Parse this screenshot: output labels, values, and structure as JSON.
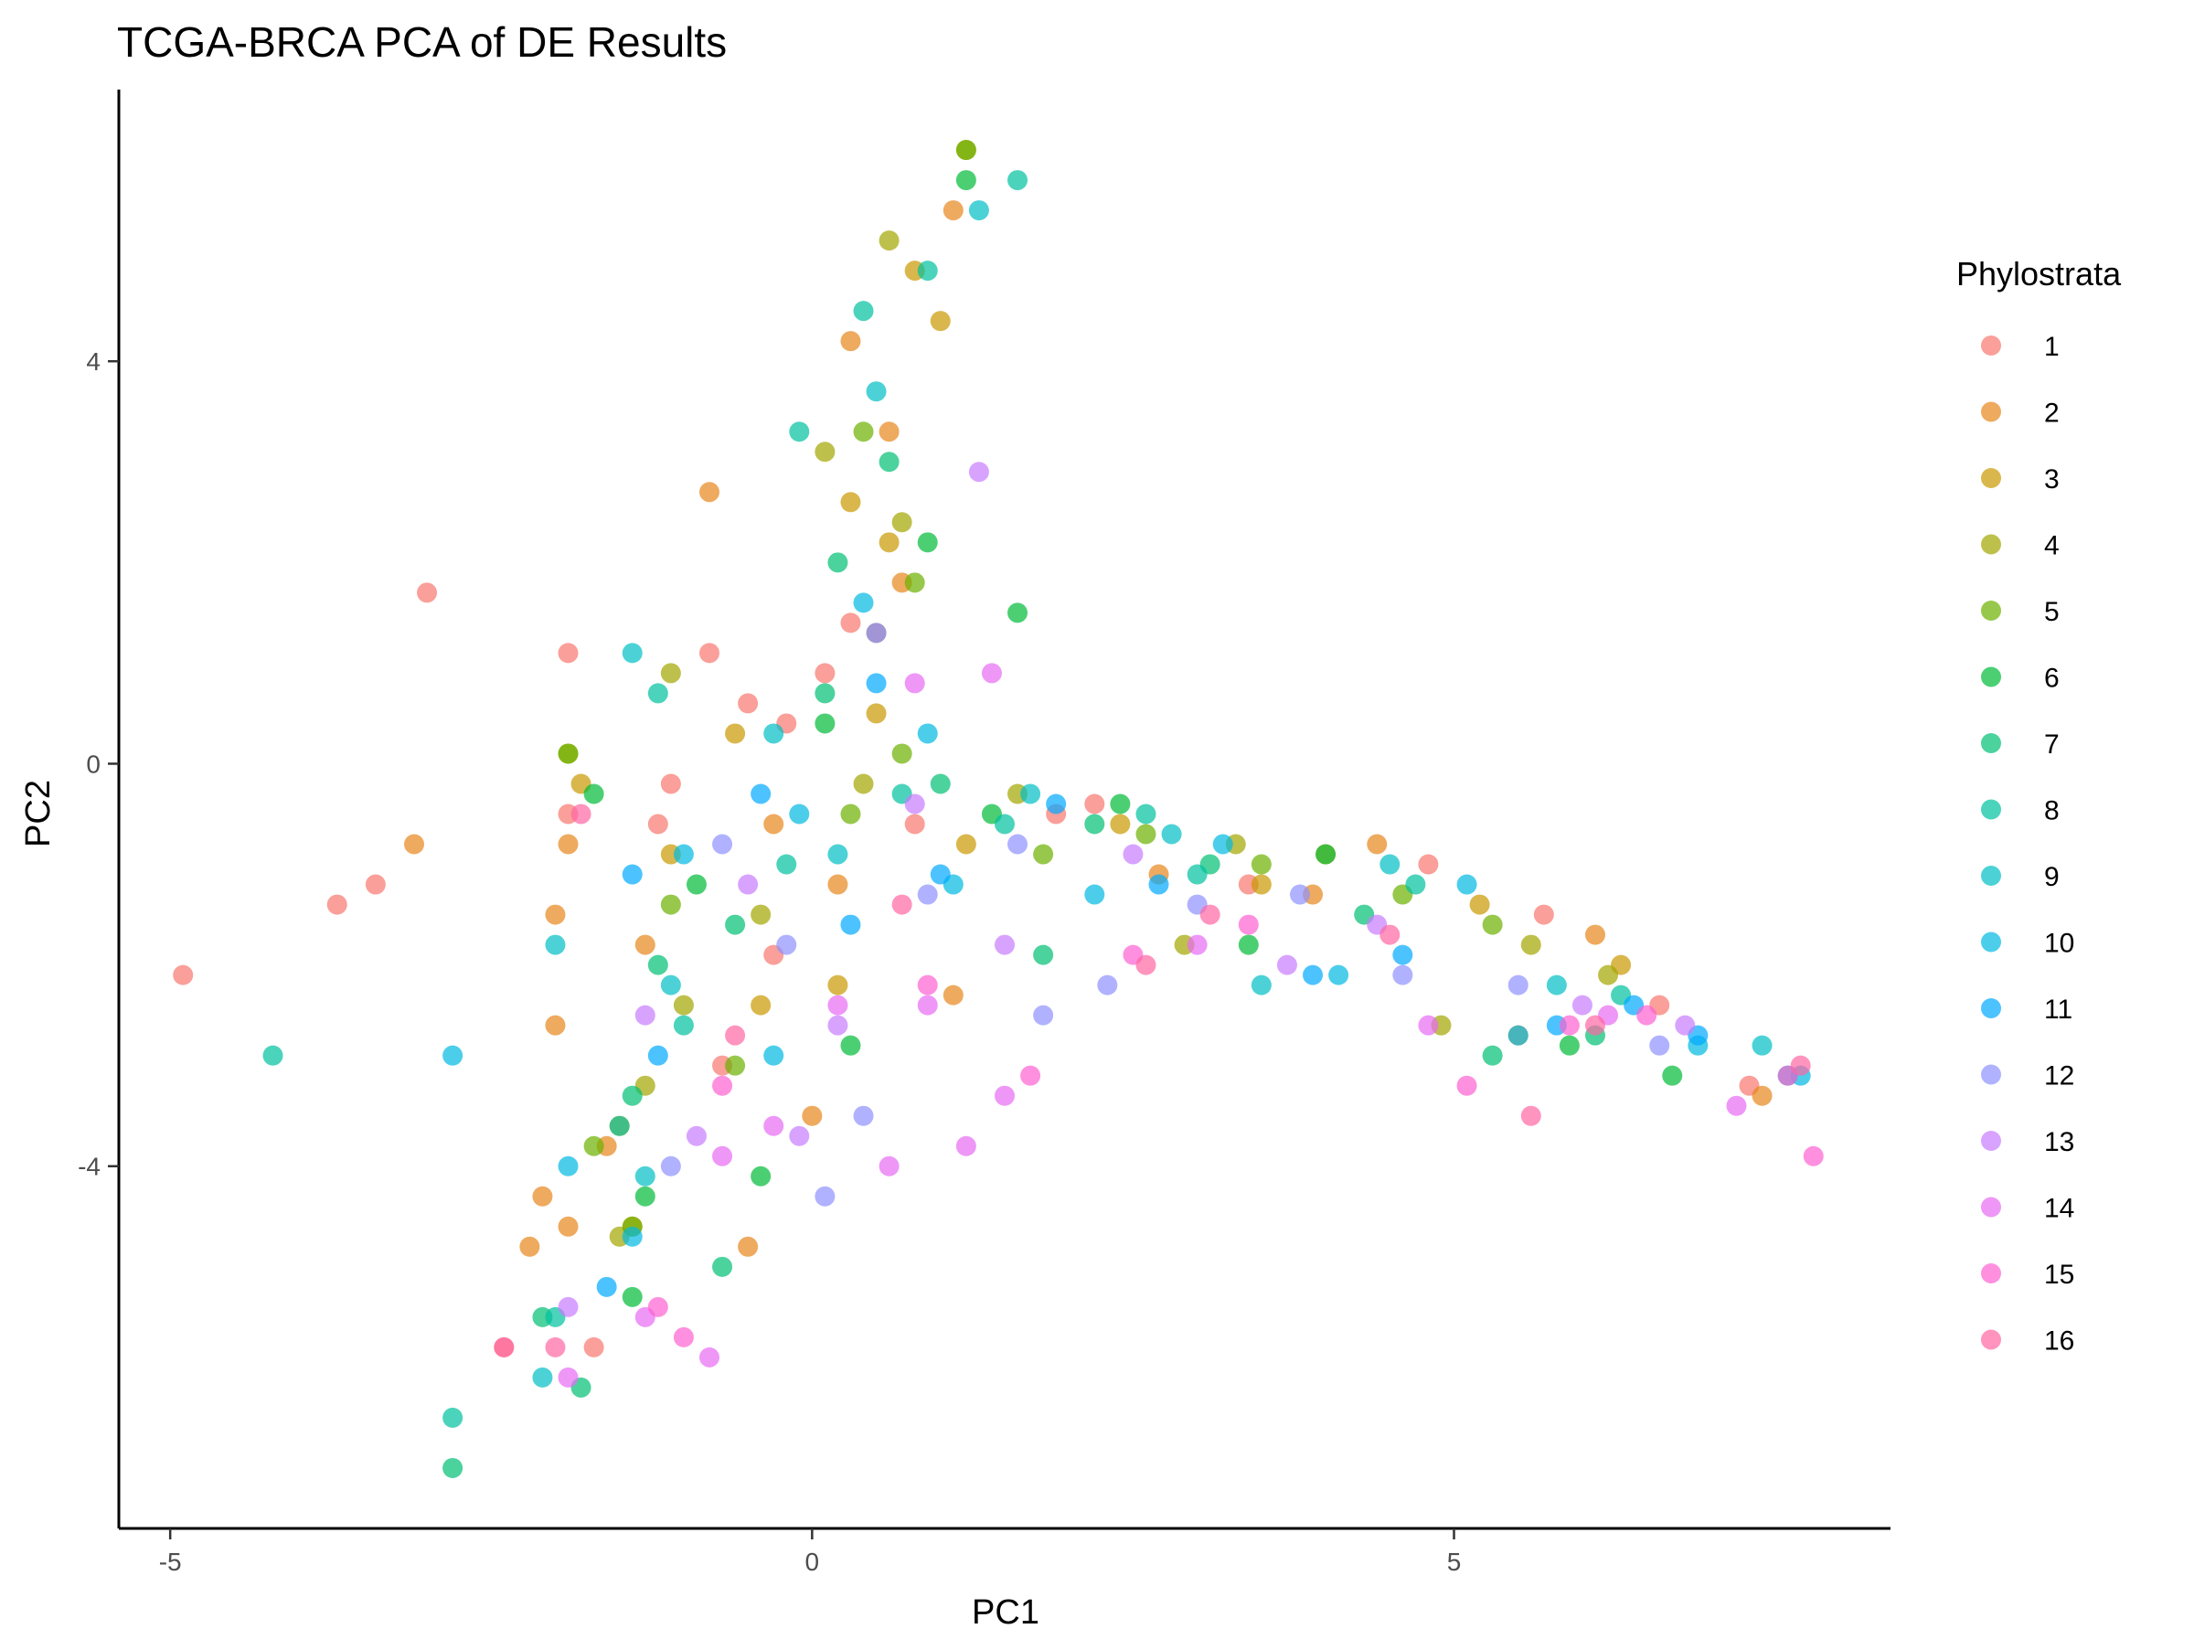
{
  "chart_data": {
    "type": "scatter",
    "title": "TCGA-BRCA PCA of DE Results",
    "xlabel": "PC1",
    "ylabel": "PC2",
    "xlim": [
      -5.4,
      8.4
    ],
    "ylim": [
      -7.6,
      6.7
    ],
    "x_ticks": [
      -5,
      0,
      5
    ],
    "x_tick_labels": [
      "-5",
      "0",
      "5"
    ],
    "y_ticks": [
      4,
      0,
      -4
    ],
    "y_tick_labels": [
      "4",
      "0",
      "-4"
    ],
    "grid": false,
    "legend_position": "right",
    "legend_title": "Phylostrata",
    "point_alpha": 0.7,
    "series": [
      {
        "name": "1",
        "color": "#F8766D",
        "points": [
          [
            -4.9,
            -2.1
          ],
          [
            -3.0,
            1.7
          ],
          [
            -3.7,
            -1.4
          ],
          [
            -3.4,
            -1.2
          ],
          [
            -1.9,
            1.1
          ],
          [
            -2.4,
            -5.8
          ],
          [
            -1.7,
            -5.8
          ],
          [
            -1.9,
            -0.5
          ],
          [
            -0.7,
            -3.0
          ],
          [
            0.3,
            1.4
          ],
          [
            -0.8,
            1.1
          ],
          [
            -0.2,
            0.4
          ],
          [
            -1.2,
            -0.6
          ],
          [
            0.8,
            -0.6
          ],
          [
            3.4,
            -1.2
          ],
          [
            4.8,
            -1.0
          ],
          [
            6.6,
            -2.4
          ],
          [
            7.3,
            -3.2
          ],
          [
            -0.5,
            0.6
          ],
          [
            0.1,
            0.9
          ],
          [
            -1.1,
            -0.2
          ],
          [
            2.2,
            -0.4
          ],
          [
            5.7,
            -1.5
          ],
          [
            -0.3,
            -1.9
          ],
          [
            1.9,
            -0.5
          ]
        ]
      },
      {
        "name": "2",
        "color": "#E7861B",
        "points": [
          [
            -3.1,
            -0.8
          ],
          [
            -2.2,
            -4.8
          ],
          [
            -0.5,
            -4.8
          ],
          [
            -1.9,
            -4.6
          ],
          [
            -2.0,
            -2.6
          ],
          [
            -2.0,
            -1.5
          ],
          [
            -2.1,
            -4.3
          ],
          [
            -1.9,
            -0.8
          ],
          [
            -0.8,
            2.7
          ],
          [
            0.3,
            4.2
          ],
          [
            0.6,
            3.3
          ],
          [
            1.1,
            5.5
          ],
          [
            0.0,
            -3.5
          ],
          [
            1.1,
            -2.3
          ],
          [
            5.5,
            -2.7
          ],
          [
            7.4,
            -3.3
          ],
          [
            -1.3,
            -1.8
          ],
          [
            -0.3,
            -0.6
          ],
          [
            0.7,
            1.8
          ],
          [
            2.7,
            -1.1
          ],
          [
            4.4,
            -0.8
          ],
          [
            6.1,
            -1.7
          ],
          [
            -1.6,
            -3.8
          ],
          [
            0.2,
            -1.2
          ],
          [
            3.9,
            -1.3
          ]
        ]
      },
      {
        "name": "3",
        "color": "#C99800",
        "points": [
          [
            -1.8,
            -0.2
          ],
          [
            -1.5,
            -3.6
          ],
          [
            -0.4,
            -2.4
          ],
          [
            0.2,
            -2.2
          ],
          [
            0.5,
            0.5
          ],
          [
            0.8,
            4.9
          ],
          [
            1.0,
            4.4
          ],
          [
            0.3,
            2.6
          ],
          [
            -1.1,
            -0.9
          ],
          [
            2.4,
            -0.6
          ],
          [
            3.5,
            -1.2
          ],
          [
            5.2,
            -1.4
          ],
          [
            6.3,
            -2.0
          ],
          [
            -0.6,
            0.3
          ],
          [
            0.6,
            2.2
          ],
          [
            -1.4,
            -4.6
          ],
          [
            1.2,
            -0.8
          ],
          [
            4.0,
            -0.9
          ]
        ]
      },
      {
        "name": "4",
        "color": "#A3A500",
        "points": [
          [
            -1.9,
            0.1
          ],
          [
            -1.1,
            0.9
          ],
          [
            0.7,
            2.4
          ],
          [
            1.2,
            6.1
          ],
          [
            0.6,
            5.2
          ],
          [
            -1.3,
            -3.2
          ],
          [
            -1.5,
            -4.7
          ],
          [
            2.9,
            -1.8
          ],
          [
            4.9,
            -2.6
          ],
          [
            6.2,
            -2.1
          ],
          [
            0.4,
            -0.2
          ],
          [
            -0.4,
            -1.5
          ],
          [
            1.6,
            -0.3
          ],
          [
            3.3,
            -0.8
          ],
          [
            0.1,
            3.1
          ],
          [
            -1.0,
            -2.4
          ],
          [
            5.6,
            -1.8
          ]
        ]
      },
      {
        "name": "5",
        "color": "#6BB100",
        "points": [
          [
            -1.9,
            0.1
          ],
          [
            -1.4,
            -4.6
          ],
          [
            -0.6,
            -3.0
          ],
          [
            0.4,
            3.3
          ],
          [
            0.8,
            1.8
          ],
          [
            1.2,
            6.1
          ],
          [
            0.3,
            -0.5
          ],
          [
            1.8,
            -0.9
          ],
          [
            3.5,
            -1.0
          ],
          [
            4.6,
            -1.3
          ],
          [
            -1.1,
            -1.4
          ],
          [
            0.7,
            0.1
          ],
          [
            -1.7,
            -3.8
          ],
          [
            2.6,
            -0.7
          ],
          [
            5.3,
            -1.6
          ]
        ]
      },
      {
        "name": "6",
        "color": "#00BA38",
        "points": [
          [
            1.6,
            1.5
          ],
          [
            1.2,
            5.8
          ],
          [
            -1.4,
            -5.3
          ],
          [
            0.3,
            -2.8
          ],
          [
            -0.4,
            -4.1
          ],
          [
            0.9,
            2.2
          ],
          [
            -1.3,
            -4.3
          ],
          [
            3.4,
            -1.8
          ],
          [
            5.9,
            -2.8
          ],
          [
            0.1,
            0.4
          ],
          [
            -0.9,
            -1.2
          ],
          [
            1.4,
            -0.5
          ],
          [
            2.4,
            -0.4
          ],
          [
            4.0,
            -0.9
          ],
          [
            6.7,
            -3.1
          ],
          [
            -1.7,
            -0.3
          ],
          [
            0.5,
            1.3
          ]
        ]
      },
      {
        "name": "7",
        "color": "#00BF74",
        "points": [
          [
            -2.8,
            -7.0
          ],
          [
            -1.8,
            -6.2
          ],
          [
            -2.1,
            -5.5
          ],
          [
            -0.7,
            -5.0
          ],
          [
            -1.4,
            -3.3
          ],
          [
            1.8,
            -1.9
          ],
          [
            3.1,
            -1.0
          ],
          [
            5.3,
            -2.9
          ],
          [
            6.1,
            -2.7
          ],
          [
            0.1,
            0.7
          ],
          [
            -0.6,
            -1.6
          ],
          [
            0.6,
            3.0
          ],
          [
            1.0,
            -0.2
          ],
          [
            2.2,
            -0.6
          ],
          [
            4.3,
            -1.5
          ],
          [
            -1.2,
            -2.0
          ],
          [
            0.2,
            2.0
          ]
        ]
      },
      {
        "name": "8",
        "color": "#00C19F",
        "points": [
          [
            -4.2,
            -2.9
          ],
          [
            -2.8,
            -6.5
          ],
          [
            -2.0,
            -5.5
          ],
          [
            1.6,
            5.8
          ],
          [
            -0.1,
            3.3
          ],
          [
            -1.2,
            0.7
          ],
          [
            -1.0,
            -2.6
          ],
          [
            0.4,
            4.5
          ],
          [
            0.9,
            4.9
          ],
          [
            -0.2,
            -1.0
          ],
          [
            1.5,
            -0.6
          ],
          [
            3.0,
            -1.1
          ],
          [
            4.7,
            -1.2
          ],
          [
            6.3,
            -2.3
          ],
          [
            -1.5,
            -3.6
          ],
          [
            0.7,
            -0.3
          ],
          [
            2.6,
            -0.5
          ]
        ]
      },
      {
        "name": "9",
        "color": "#00BFC4",
        "points": [
          [
            -2.1,
            -6.1
          ],
          [
            -2.0,
            -1.8
          ],
          [
            -1.4,
            1.1
          ],
          [
            1.3,
            5.5
          ],
          [
            0.5,
            3.7
          ],
          [
            -1.1,
            -2.2
          ],
          [
            0.2,
            -0.9
          ],
          [
            1.7,
            -0.3
          ],
          [
            3.5,
            -2.2
          ],
          [
            5.8,
            -2.2
          ],
          [
            7.6,
            -3.1
          ],
          [
            7.4,
            -2.8
          ],
          [
            -0.3,
            0.3
          ],
          [
            -1.3,
            -4.1
          ],
          [
            2.8,
            -0.7
          ],
          [
            4.5,
            -1.0
          ]
        ]
      },
      {
        "name": "10",
        "color": "#00B9E3",
        "points": [
          [
            -2.8,
            -2.9
          ],
          [
            -1.4,
            -4.7
          ],
          [
            -1.9,
            -4.0
          ],
          [
            -0.3,
            -2.9
          ],
          [
            1.1,
            -1.2
          ],
          [
            2.2,
            -1.3
          ],
          [
            4.1,
            -2.1
          ],
          [
            5.5,
            -2.7
          ],
          [
            6.9,
            -2.8
          ],
          [
            7.7,
            -3.1
          ],
          [
            -0.1,
            -0.5
          ],
          [
            0.9,
            0.3
          ],
          [
            -1.0,
            -0.9
          ],
          [
            3.2,
            -0.8
          ],
          [
            5.1,
            -1.2
          ],
          [
            0.4,
            1.6
          ]
        ]
      },
      {
        "name": "11",
        "color": "#00A9FF",
        "points": [
          [
            -1.6,
            -5.2
          ],
          [
            -1.4,
            -1.1
          ],
          [
            1.0,
            -1.1
          ],
          [
            3.9,
            -2.1
          ],
          [
            5.8,
            -2.6
          ],
          [
            6.9,
            -2.7
          ],
          [
            6.4,
            -2.4
          ],
          [
            -0.4,
            -0.3
          ],
          [
            0.5,
            0.8
          ],
          [
            1.9,
            -0.4
          ],
          [
            -1.2,
            -2.9
          ],
          [
            0.3,
            -1.6
          ],
          [
            4.6,
            -1.9
          ],
          [
            2.7,
            -1.2
          ]
        ]
      },
      {
        "name": "12",
        "color": "#8F91FF",
        "points": [
          [
            0.1,
            -4.3
          ],
          [
            0.4,
            -3.5
          ],
          [
            1.8,
            -2.5
          ],
          [
            2.3,
            -2.2
          ],
          [
            4.6,
            -2.1
          ],
          [
            6.6,
            -2.8
          ],
          [
            -1.1,
            -4.0
          ],
          [
            -0.2,
            -1.8
          ],
          [
            0.9,
            -1.3
          ],
          [
            3.0,
            -1.4
          ],
          [
            5.5,
            -2.2
          ],
          [
            -0.7,
            -0.8
          ],
          [
            1.6,
            -0.8
          ],
          [
            3.8,
            -1.3
          ]
        ]
      },
      {
        "name": "13",
        "color": "#C77CFF",
        "points": [
          [
            -0.1,
            -3.7
          ],
          [
            1.3,
            2.9
          ],
          [
            0.5,
            1.3
          ],
          [
            -1.9,
            -5.4
          ],
          [
            -0.9,
            -3.7
          ],
          [
            0.2,
            -2.6
          ],
          [
            1.5,
            -1.8
          ],
          [
            3.7,
            -2.0
          ],
          [
            6.0,
            -2.4
          ],
          [
            6.8,
            -2.6
          ],
          [
            -0.5,
            -1.2
          ],
          [
            0.8,
            -0.4
          ],
          [
            2.5,
            -0.9
          ],
          [
            4.4,
            -1.6
          ],
          [
            -1.3,
            -2.5
          ]
        ]
      },
      {
        "name": "14",
        "color": "#E76BF3",
        "points": [
          [
            1.4,
            0.9
          ],
          [
            0.8,
            0.8
          ],
          [
            0.6,
            -4.0
          ],
          [
            1.2,
            -3.8
          ],
          [
            -0.8,
            -5.9
          ],
          [
            -1.9,
            -6.1
          ],
          [
            -1.3,
            -5.5
          ],
          [
            1.5,
            -3.3
          ],
          [
            0.9,
            -2.4
          ],
          [
            4.8,
            -2.6
          ],
          [
            7.2,
            -3.4
          ],
          [
            6.2,
            -2.5
          ],
          [
            -0.3,
            -3.6
          ],
          [
            -0.7,
            -3.9
          ],
          [
            0.2,
            -2.4
          ],
          [
            3.0,
            -1.8
          ]
        ]
      },
      {
        "name": "15",
        "color": "#FD61D1",
        "points": [
          [
            -1.2,
            -5.4
          ],
          [
            -1.0,
            -5.7
          ],
          [
            1.7,
            -3.1
          ],
          [
            2.5,
            -1.9
          ],
          [
            5.1,
            -3.2
          ],
          [
            7.6,
            -3.1
          ],
          [
            7.8,
            -3.9
          ],
          [
            5.9,
            -2.6
          ],
          [
            -0.7,
            -3.2
          ],
          [
            0.9,
            -2.2
          ],
          [
            3.4,
            -1.6
          ],
          [
            6.5,
            -2.5
          ]
        ]
      },
      {
        "name": "16",
        "color": "#FF67A4",
        "points": [
          [
            -2.4,
            -5.8
          ],
          [
            -2.0,
            -5.8
          ],
          [
            2.6,
            -2.0
          ],
          [
            4.5,
            -1.7
          ],
          [
            5.6,
            -3.5
          ],
          [
            7.7,
            -3.0
          ],
          [
            6.1,
            -2.6
          ],
          [
            -1.8,
            -0.5
          ],
          [
            0.7,
            -1.4
          ],
          [
            3.1,
            -1.5
          ],
          [
            -0.6,
            -2.7
          ]
        ]
      }
    ]
  }
}
